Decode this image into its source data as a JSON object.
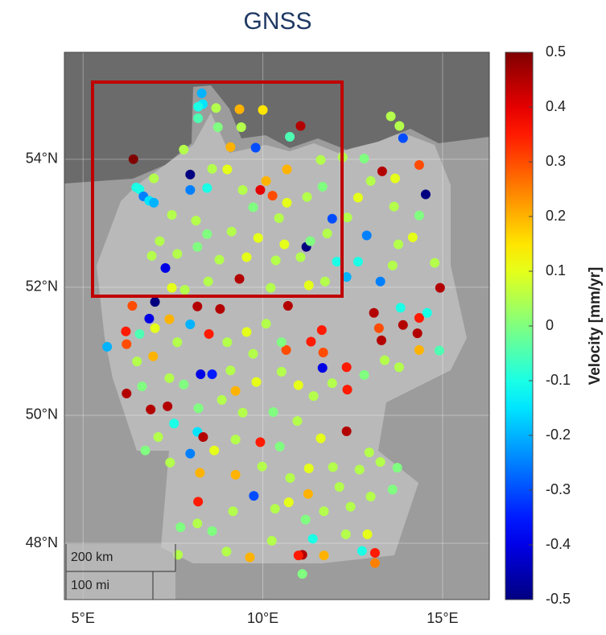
{
  "chart_data": {
    "type": "scatter",
    "title": "GNSS",
    "colorbar_label": "Velocity [mm/yr]",
    "colormap": "jet",
    "annotations": [
      "200 km",
      "100 mi"
    ],
    "xlim": [
      4.48,
      16.3
    ],
    "ylim": [
      47.12,
      55.67
    ],
    "clim": [
      -0.5,
      0.5
    ],
    "xticks": [
      {
        "value": 5,
        "label": "5°E"
      },
      {
        "value": 10,
        "label": "10°E"
      },
      {
        "value": 15,
        "label": "15°E"
      }
    ],
    "yticks": [
      {
        "value": 48,
        "label": "48°N"
      },
      {
        "value": 50,
        "label": "50°N"
      },
      {
        "value": 52,
        "label": "52°N"
      },
      {
        "value": 54,
        "label": "54°N"
      }
    ],
    "cticks": [
      0.5,
      0.4,
      0.3,
      0.2,
      0.1,
      0,
      -0.1,
      -0.2,
      -0.3,
      -0.4,
      -0.5
    ],
    "grid": true,
    "x": [
      6.4,
      11.05,
      8.3,
      8.33,
      8.2,
      8.2,
      8.75,
      9.4,
      9.8,
      10.75,
      9.1,
      10.0,
      9.35,
      8.7,
      7.98,
      6.48,
      6.57,
      6.68,
      6.84,
      6.97,
      6.97,
      7.98,
      8.45,
      9.93,
      10.27,
      10.09,
      10.67,
      13.32,
      14.35,
      14.53,
      13.9,
      13.56,
      13.8,
      11.93,
      11.21,
      12.89,
      7.29,
      9.35,
      12.06,
      12.65,
      13.27,
      14.93,
      12.33,
      7.0,
      6.37,
      8.18,
      8.81,
      10.7,
      13.09,
      13.83,
      6.84,
      6.19,
      6.21,
      5.67,
      6.57,
      7.4,
      7.98,
      8.5,
      13.23,
      13.3,
      13.9,
      14.3,
      14.35,
      14.57,
      14.91,
      14.35,
      11.68,
      11.64,
      11.34,
      10.65,
      11.66,
      12.33,
      12.35,
      12.33,
      8.27,
      8.59,
      6.21,
      6.88,
      7.35,
      7.53,
      8.18,
      8.34,
      7.98,
      9.93,
      9.75,
      8.2,
      8.25,
      11.1,
      10.99,
      11.39,
      11.19,
      12.76,
      13.12,
      13.12,
      11.1,
      7.8,
      8.59,
      9.01,
      9.44,
      9.73,
      10.45,
      10.67,
      11.23,
      11.66,
      11.61,
      12.22,
      12.82,
      13.0,
      13.68,
      13.65,
      14.35,
      12.65,
      12.35,
      11.79,
      11.32,
      10.6,
      9.87,
      9.13,
      8.45,
      8.14,
      7.47,
      7.13,
      6.91,
      7.62,
      8.18,
      8.79,
      9.55,
      10.36,
      11.05,
      11.73,
      11.28,
      10.22,
      8.48,
      7.83,
      7.47,
      13.77,
      14.17,
      13.61,
      14.78,
      7.0,
      7.62,
      9.01,
      9.55,
      10.09,
      10.52,
      9.73,
      9.1,
      9.82,
      10.52,
      10.99,
      11.41,
      11.93,
      12.82,
      13.39,
      13.79,
      6.5,
      6.64,
      6.95,
      7.4,
      7.8,
      8.21,
      8.86,
      9.24,
      9.44,
      10.29,
      10.96,
      11.61,
      10.47,
      9.24,
      8.65,
      7.09,
      6.73,
      7.42,
      9.24,
      9.98,
      10.76,
      11.28,
      11.95,
      12.69,
      13.27,
      13.74,
      12.96,
      8.18,
      8.59,
      9.17,
      10.34,
      10.72,
      11.26,
      11.7,
      12.13,
      12.44,
      13.0,
      13.61,
      7.71,
      7.64,
      8.99,
      9.64,
      10.25,
      11.7,
      12.31,
      12.91
    ],
    "y": [
      54.0,
      54.52,
      55.03,
      54.86,
      54.82,
      54.64,
      54.5,
      54.5,
      54.18,
      54.35,
      54.19,
      54.77,
      54.78,
      54.8,
      53.76,
      53.56,
      53.53,
      53.42,
      53.35,
      53.32,
      53.7,
      53.52,
      53.55,
      53.52,
      53.43,
      53.66,
      53.84,
      53.81,
      53.91,
      53.45,
      54.33,
      54.67,
      54.52,
      53.07,
      52.63,
      52.81,
      52.3,
      52.13,
      52.4,
      52.4,
      52.09,
      51.99,
      52.16,
      51.77,
      51.71,
      51.7,
      51.66,
      51.71,
      51.6,
      51.68,
      51.51,
      51.31,
      51.11,
      51.07,
      51.27,
      51.5,
      51.42,
      51.27,
      51.36,
      51.17,
      51.41,
      51.28,
      51.52,
      51.6,
      51.01,
      51.02,
      50.98,
      51.33,
      51.15,
      51.02,
      50.74,
      50.75,
      50.4,
      49.75,
      50.64,
      50.64,
      50.34,
      50.09,
      50.14,
      49.87,
      49.74,
      49.66,
      49.4,
      49.58,
      48.74,
      48.65,
      49.1,
      47.82,
      47.81,
      48.07,
      48.37,
      47.88,
      47.85,
      47.69,
      47.52,
      54.15,
      53.85,
      53.84,
      53.52,
      53.25,
      53.08,
      53.32,
      53.41,
      53.57,
      53.99,
      54.03,
      54.01,
      53.66,
      53.7,
      53.26,
      53.12,
      53.4,
      53.09,
      52.84,
      52.72,
      52.67,
      52.77,
      52.87,
      52.83,
      53.04,
      53.13,
      52.72,
      52.49,
      52.52,
      52.63,
      52.43,
      52.47,
      52.42,
      52.47,
      52.09,
      52.03,
      51.99,
      52.09,
      51.96,
      51.99,
      52.67,
      52.78,
      52.34,
      52.38,
      51.36,
      51.14,
      51.14,
      51.3,
      51.43,
      51.14,
      50.96,
      50.7,
      50.52,
      50.68,
      50.47,
      50.3,
      50.5,
      50.63,
      50.86,
      50.75,
      50.84,
      50.45,
      50.92,
      50.58,
      50.48,
      50.11,
      50.24,
      50.38,
      50.04,
      50.05,
      49.91,
      49.64,
      49.51,
      49.62,
      49.45,
      49.66,
      49.45,
      49.26,
      49.07,
      49.2,
      49.02,
      49.17,
      49.19,
      49.15,
      49.27,
      49.18,
      49.42,
      48.31,
      48.19,
      48.5,
      48.54,
      48.64,
      48.77,
      48.5,
      48.88,
      48.57,
      48.73,
      48.84,
      48.25,
      47.82,
      47.87,
      47.78,
      48.04,
      47.81,
      48.14,
      48.14
    ],
    "values": [
      0.5,
      0.45,
      -0.2,
      -0.15,
      -0.1,
      -0.05,
      0,
      0.05,
      -0.3,
      -0.05,
      0.2,
      0.15,
      0.2,
      0.05,
      -0.5,
      -0.1,
      -0.1,
      -0.25,
      -0.15,
      -0.2,
      0.05,
      -0.25,
      -0.1,
      0.4,
      0.3,
      0.2,
      0.2,
      0.45,
      0.3,
      -0.5,
      -0.3,
      0.05,
      0.05,
      -0.3,
      -0.5,
      -0.25,
      -0.4,
      0.45,
      -0.1,
      -0.1,
      -0.25,
      0.45,
      -0.2,
      -0.5,
      0.3,
      0.45,
      0.45,
      0.45,
      0.45,
      -0.1,
      -0.4,
      0.35,
      0.3,
      -0.2,
      -0.05,
      0.2,
      -0.2,
      0.35,
      0.3,
      0.45,
      0.45,
      0.45,
      0.35,
      -0.1,
      -0.05,
      0.2,
      0.3,
      0.35,
      0.35,
      0.3,
      -0.4,
      0.35,
      0.35,
      0.45,
      -0.4,
      -0.35,
      0.45,
      0.45,
      0.45,
      -0.1,
      -0.15,
      0.45,
      -0.25,
      0.35,
      -0.3,
      0.35,
      0.2,
      0.45,
      0.35,
      -0.1,
      0,
      -0.1,
      0.35,
      0.25,
      0,
      0.05,
      0.05,
      0.1,
      0.05,
      0,
      0.05,
      0.1,
      0.05,
      0,
      0.05,
      0.05,
      0,
      0.05,
      0.1,
      0.05,
      0,
      0.1,
      0.05,
      0.05,
      0,
      0.1,
      0.1,
      0.05,
      0,
      0.05,
      0.05,
      0.05,
      0.05,
      0.05,
      0,
      0.05,
      0.1,
      0.05,
      0.05,
      0.05,
      0.1,
      0.05,
      0.05,
      0.05,
      0.1,
      0.05,
      0.1,
      0.05,
      0.05,
      0.1,
      0.05,
      0.05,
      0.1,
      0.05,
      0,
      0.05,
      0.05,
      0.1,
      0.05,
      0.1,
      0.05,
      0.05,
      0,
      0.05,
      0.05,
      0.05,
      0,
      0.2,
      0.05,
      0,
      0,
      0.05,
      0.2,
      0.05,
      0,
      0.05,
      0.1,
      0,
      0.05,
      0.1,
      0.05,
      0,
      0.05,
      0.2,
      0.05,
      0.05,
      0.1,
      0.05,
      0.05,
      0.05,
      0,
      0.05,
      0.05,
      0,
      0.05,
      0.05,
      0.1,
      0.2,
      0.05,
      0.05,
      0.05,
      0.05,
      0,
      0,
      0.05,
      0.05,
      0.2,
      0.05,
      0.2,
      0.05,
      0.1
    ]
  }
}
